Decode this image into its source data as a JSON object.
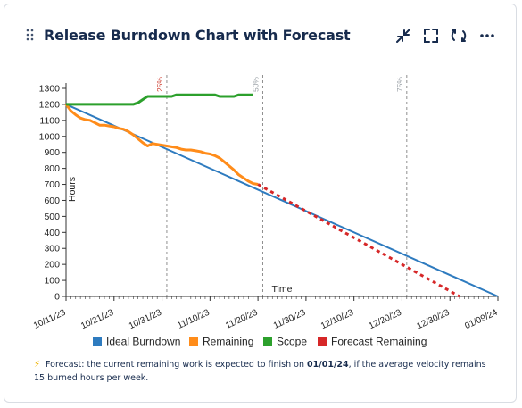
{
  "widget": {
    "title": "Release Burndown Chart with Forecast",
    "actions": [
      {
        "name": "minimize-icon"
      },
      {
        "name": "fullscreen-icon"
      },
      {
        "name": "refresh-icon"
      },
      {
        "name": "more-icon"
      }
    ]
  },
  "footnote": {
    "prefix": "Forecast: the current remaining work is expected to finish on ",
    "date": "01/01/24",
    "suffix": ", if the average velocity remains 15 burned hours per week."
  },
  "chart_data": {
    "type": "line",
    "title": "",
    "xlabel": "Time",
    "ylabel": "Hours",
    "ylim": [
      0,
      1300
    ],
    "yticks": [
      0,
      100,
      200,
      300,
      400,
      500,
      600,
      700,
      800,
      900,
      1000,
      1100,
      1200,
      1300
    ],
    "xlim": [
      "2023-10-11",
      "2024-01-09"
    ],
    "xticks": [
      "10/11/23",
      "10/21/23",
      "10/31/23",
      "11/10/23",
      "11/20/23",
      "11/30/23",
      "12/10/23",
      "12/20/23",
      "12/30/23",
      "01/09/24"
    ],
    "milestones": [
      {
        "label": "25%",
        "date": "2023-11-01",
        "color": "#d04437"
      },
      {
        "label": "50%",
        "date": "2023-11-21",
        "color": "#9aa0a6"
      },
      {
        "label": "75%",
        "date": "2023-12-21",
        "color": "#9aa0a6"
      }
    ],
    "legend": "bottom",
    "grid": false,
    "series": [
      {
        "name": "Ideal Burndown",
        "color": "#2e7bbf",
        "style": "solid",
        "points": [
          [
            "2023-10-11",
            1200
          ],
          [
            "2024-01-09",
            0
          ]
        ]
      },
      {
        "name": "Remaining",
        "color": "#ff8c1a",
        "style": "solid",
        "points": [
          [
            "2023-10-11",
            1200
          ],
          [
            "2023-10-12",
            1160
          ],
          [
            "2023-10-13",
            1135
          ],
          [
            "2023-10-14",
            1115
          ],
          [
            "2023-10-15",
            1105
          ],
          [
            "2023-10-16",
            1100
          ],
          [
            "2023-10-17",
            1085
          ],
          [
            "2023-10-18",
            1070
          ],
          [
            "2023-10-19",
            1070
          ],
          [
            "2023-10-20",
            1065
          ],
          [
            "2023-10-21",
            1060
          ],
          [
            "2023-10-22",
            1050
          ],
          [
            "2023-10-23",
            1045
          ],
          [
            "2023-10-24",
            1030
          ],
          [
            "2023-10-25",
            1010
          ],
          [
            "2023-10-26",
            985
          ],
          [
            "2023-10-27",
            960
          ],
          [
            "2023-10-28",
            940
          ],
          [
            "2023-10-29",
            955
          ],
          [
            "2023-10-30",
            950
          ],
          [
            "2023-10-31",
            945
          ],
          [
            "2023-11-01",
            940
          ],
          [
            "2023-11-02",
            935
          ],
          [
            "2023-11-03",
            930
          ],
          [
            "2023-11-04",
            920
          ],
          [
            "2023-11-05",
            915
          ],
          [
            "2023-11-06",
            915
          ],
          [
            "2023-11-07",
            910
          ],
          [
            "2023-11-08",
            905
          ],
          [
            "2023-11-09",
            895
          ],
          [
            "2023-11-10",
            890
          ],
          [
            "2023-11-11",
            880
          ],
          [
            "2023-11-12",
            865
          ],
          [
            "2023-11-13",
            840
          ],
          [
            "2023-11-14",
            815
          ],
          [
            "2023-11-15",
            790
          ],
          [
            "2023-11-16",
            760
          ],
          [
            "2023-11-17",
            740
          ],
          [
            "2023-11-18",
            720
          ],
          [
            "2023-11-19",
            705
          ],
          [
            "2023-11-20",
            700
          ]
        ]
      },
      {
        "name": "Scope",
        "color": "#2ca02c",
        "style": "solid",
        "points": [
          [
            "2023-10-11",
            1200
          ],
          [
            "2023-10-22",
            1200
          ],
          [
            "2023-10-25",
            1200
          ],
          [
            "2023-10-26",
            1210
          ],
          [
            "2023-10-27",
            1230
          ],
          [
            "2023-10-28",
            1250
          ],
          [
            "2023-11-02",
            1250
          ],
          [
            "2023-11-03",
            1260
          ],
          [
            "2023-11-11",
            1260
          ],
          [
            "2023-11-12",
            1250
          ],
          [
            "2023-11-15",
            1250
          ],
          [
            "2023-11-16",
            1260
          ],
          [
            "2023-11-19",
            1260
          ]
        ]
      },
      {
        "name": "Forecast Remaining",
        "color": "#d62728",
        "style": "dotted",
        "points": [
          [
            "2023-11-20",
            700
          ],
          [
            "2024-01-01",
            0
          ]
        ]
      }
    ]
  }
}
